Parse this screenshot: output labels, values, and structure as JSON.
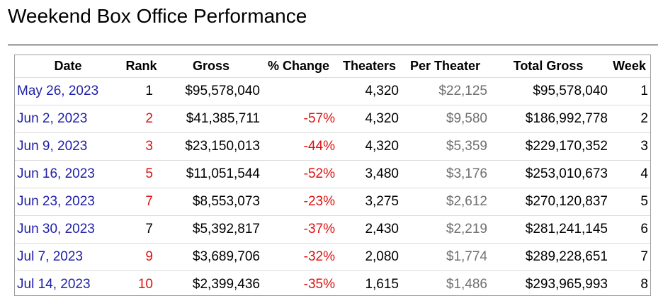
{
  "title": "Weekend Box Office Performance",
  "colors": {
    "link": "#1f1fa8",
    "negative": "#e01010",
    "secondary": "#707070"
  },
  "table": {
    "headers": [
      "Date",
      "Rank",
      "Gross",
      "% Change",
      "Theaters",
      "Per Theater",
      "Total Gross",
      "Week"
    ],
    "rows": [
      {
        "date": "May 26, 2023",
        "rank": "1",
        "rank_red": false,
        "gross": "$95,578,040",
        "change": "",
        "theaters": "4,320",
        "per_theater": "$22,125",
        "total": "$95,578,040",
        "week": "1"
      },
      {
        "date": "Jun 2, 2023",
        "rank": "2",
        "rank_red": true,
        "gross": "$41,385,711",
        "change": "-57%",
        "theaters": "4,320",
        "per_theater": "$9,580",
        "total": "$186,992,778",
        "week": "2"
      },
      {
        "date": "Jun 9, 2023",
        "rank": "3",
        "rank_red": true,
        "gross": "$23,150,013",
        "change": "-44%",
        "theaters": "4,320",
        "per_theater": "$5,359",
        "total": "$229,170,352",
        "week": "3"
      },
      {
        "date": "Jun 16, 2023",
        "rank": "5",
        "rank_red": true,
        "gross": "$11,051,544",
        "change": "-52%",
        "theaters": "3,480",
        "per_theater": "$3,176",
        "total": "$253,010,673",
        "week": "4"
      },
      {
        "date": "Jun 23, 2023",
        "rank": "7",
        "rank_red": true,
        "gross": "$8,553,073",
        "change": "-23%",
        "theaters": "3,275",
        "per_theater": "$2,612",
        "total": "$270,120,837",
        "week": "5"
      },
      {
        "date": "Jun 30, 2023",
        "rank": "7",
        "rank_red": false,
        "gross": "$5,392,817",
        "change": "-37%",
        "theaters": "2,430",
        "per_theater": "$2,219",
        "total": "$281,241,145",
        "week": "6"
      },
      {
        "date": "Jul 7, 2023",
        "rank": "9",
        "rank_red": true,
        "gross": "$3,689,706",
        "change": "-32%",
        "theaters": "2,080",
        "per_theater": "$1,774",
        "total": "$289,228,651",
        "week": "7"
      },
      {
        "date": "Jul 14, 2023",
        "rank": "10",
        "rank_red": true,
        "gross": "$2,399,436",
        "change": "-35%",
        "theaters": "1,615",
        "per_theater": "$1,486",
        "total": "$293,965,993",
        "week": "8"
      }
    ]
  }
}
